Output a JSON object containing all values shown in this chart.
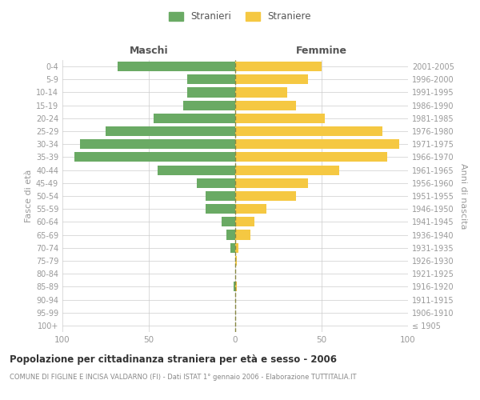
{
  "age_groups": [
    "100+",
    "95-99",
    "90-94",
    "85-89",
    "80-84",
    "75-79",
    "70-74",
    "65-69",
    "60-64",
    "55-59",
    "50-54",
    "45-49",
    "40-44",
    "35-39",
    "30-34",
    "25-29",
    "20-24",
    "15-19",
    "10-14",
    "5-9",
    "0-4"
  ],
  "birth_years": [
    "≤ 1905",
    "1906-1910",
    "1911-1915",
    "1916-1920",
    "1921-1925",
    "1926-1930",
    "1931-1935",
    "1936-1940",
    "1941-1945",
    "1946-1950",
    "1951-1955",
    "1956-1960",
    "1961-1965",
    "1966-1970",
    "1971-1975",
    "1976-1980",
    "1981-1985",
    "1986-1990",
    "1991-1995",
    "1996-2000",
    "2001-2005"
  ],
  "males": [
    0,
    0,
    0,
    1,
    0,
    0,
    3,
    5,
    8,
    17,
    17,
    22,
    45,
    93,
    90,
    75,
    47,
    30,
    28,
    28,
    68
  ],
  "females": [
    0,
    0,
    0,
    1,
    0,
    1,
    2,
    9,
    11,
    18,
    35,
    42,
    60,
    88,
    95,
    85,
    52,
    35,
    30,
    42,
    50
  ],
  "male_color": "#6aaa64",
  "female_color": "#f5c842",
  "title": "Popolazione per cittadinanza straniera per età e sesso - 2006",
  "subtitle": "COMUNE DI FIGLINE E INCISA VALDARNO (FI) - Dati ISTAT 1° gennaio 2006 - Elaborazione TUTTITALIA.IT",
  "xlabel_left": "Maschi",
  "xlabel_right": "Femmine",
  "ylabel_left": "Fasce di età",
  "ylabel_right": "Anni di nascita",
  "legend_stranieri": "Stranieri",
  "legend_straniere": "Straniere",
  "xlim": 100,
  "background_color": "#ffffff",
  "grid_color": "#cccccc",
  "tick_color": "#999999",
  "dashed_line_color": "#888844"
}
